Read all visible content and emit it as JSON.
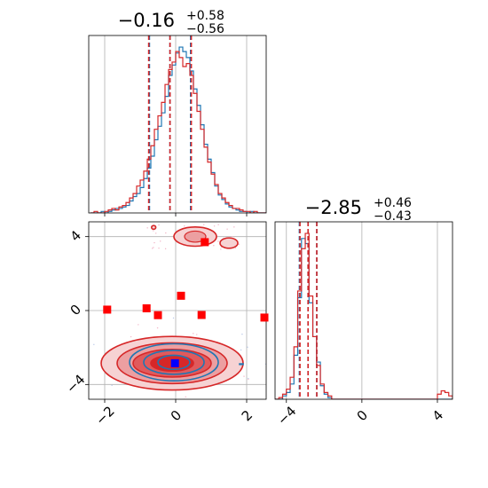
{
  "colors": {
    "blue": "#1f77b4",
    "red": "#d62728",
    "red_fill": "#e99a9b",
    "marker_red": "#ff0000",
    "marker_blue": "#0000ff",
    "grid": "#b0b0b0"
  },
  "chart_data": {
    "type": "corner",
    "params": 2,
    "grid": true,
    "titles": [
      {
        "value": "−0.16",
        "plus": "+0.58",
        "minus": "−0.56"
      },
      {
        "value": "−2.85",
        "plus": "+0.46",
        "minus": "−0.43"
      }
    ],
    "ticks": {
      "x0": {
        "values": [
          -2,
          0,
          2
        ],
        "labels": [
          "−2",
          "0",
          "2"
        ]
      },
      "y1": {
        "values": [
          -4,
          0,
          4
        ],
        "labels": [
          "−4",
          "0",
          "4"
        ]
      },
      "x1": {
        "values": [
          -4,
          0,
          4
        ],
        "labels": [
          "−4",
          "0",
          "4"
        ]
      }
    },
    "ranges": {
      "x0": [
        -2.45,
        2.55
      ],
      "x1": [
        -4.6,
        4.8
      ],
      "y1": [
        -4.8,
        4.8
      ]
    },
    "hist0": {
      "bin_start": -2.4,
      "bin_width": 0.1,
      "blue": [
        0,
        0,
        0,
        1,
        0,
        1,
        2,
        3,
        3,
        4,
        5,
        8,
        11,
        13,
        17,
        23,
        30,
        38,
        49,
        58,
        67,
        78,
        92,
        99,
        107,
        111,
        108,
        104,
        95,
        83,
        72,
        59,
        46,
        36,
        27,
        18,
        12,
        9,
        6,
        4,
        3,
        2,
        1,
        1,
        0,
        1,
        0,
        0,
        0,
        0
      ],
      "red": [
        0,
        1,
        0,
        0,
        1,
        2,
        3,
        2,
        4,
        5,
        7,
        10,
        13,
        18,
        22,
        28,
        36,
        45,
        56,
        65,
        74,
        86,
        96,
        101,
        108,
        104,
        98,
        100,
        92,
        80,
        68,
        56,
        44,
        34,
        26,
        19,
        13,
        10,
        7,
        5,
        3,
        3,
        2,
        1,
        1,
        0,
        1,
        0,
        0,
        0
      ],
      "blue_quantiles": [
        -0.74,
        -0.16,
        0.42
      ],
      "red_quantiles": [
        -0.76,
        -0.16,
        0.44
      ]
    },
    "hist1": {
      "bin_start": -4.6,
      "bin_width": 0.2,
      "blue": [
        0,
        0,
        2,
        4,
        9,
        26,
        60,
        95,
        92,
        57,
        37,
        22,
        8,
        3,
        1,
        0,
        0,
        0,
        0,
        0,
        0,
        0,
        0,
        0,
        0,
        0,
        0,
        0,
        0,
        0,
        0,
        0,
        0,
        0,
        0,
        0,
        0,
        0,
        0,
        0,
        0,
        0,
        0,
        0,
        0,
        0,
        0
      ],
      "red": [
        0,
        1,
        3,
        6,
        13,
        31,
        64,
        89,
        98,
        61,
        37,
        20,
        9,
        4,
        2,
        0,
        0,
        0,
        0,
        0,
        0,
        0,
        0,
        0,
        0,
        0,
        0,
        0,
        0,
        0,
        0,
        0,
        0,
        0,
        0,
        0,
        0,
        0,
        0,
        0,
        0,
        0,
        0,
        3,
        5,
        4,
        2
      ],
      "blue_quantiles": [
        -3.31,
        -2.85,
        -2.39
      ],
      "red_quantiles": [
        -3.28,
        -2.85,
        -2.39
      ]
    },
    "scatter_2d": {
      "red_markers": [
        [
          -1.93,
          0.05
        ],
        [
          -0.82,
          0.12
        ],
        [
          -0.5,
          -0.25
        ],
        [
          0.15,
          0.8
        ],
        [
          0.73,
          -0.24
        ],
        [
          2.5,
          -0.38
        ],
        [
          0.82,
          3.7
        ]
      ],
      "blue_marker": [
        -0.02,
        -2.85
      ],
      "red_contours": [
        {
          "cx": -0.1,
          "cy": -2.85,
          "rx": 2.0,
          "ry": 1.45
        },
        {
          "cx": -0.1,
          "cy": -2.85,
          "rx": 1.55,
          "ry": 1.1
        },
        {
          "cx": -0.1,
          "cy": -2.85,
          "rx": 1.1,
          "ry": 0.75
        },
        {
          "cx": -0.1,
          "cy": -2.85,
          "rx": 0.6,
          "ry": 0.42
        }
      ],
      "blue_contours": [
        {
          "cx": -0.05,
          "cy": -2.8,
          "rx": 1.25,
          "ry": 1.0
        },
        {
          "cx": -0.05,
          "cy": -2.8,
          "rx": 0.85,
          "ry": 0.65
        },
        {
          "cx": -0.05,
          "cy": -2.8,
          "rx": 0.45,
          "ry": 0.38
        }
      ],
      "upper_blobs": [
        {
          "cx": 0.55,
          "cy": 4.0,
          "rx": 0.6,
          "ry": 0.52
        },
        {
          "cx": 1.5,
          "cy": 3.65,
          "rx": 0.25,
          "ry": 0.28
        },
        {
          "cx": -0.62,
          "cy": 4.5,
          "rx": 0.06,
          "ry": 0.1
        }
      ],
      "small_blue_dash": [
        1.85,
        -2.9
      ]
    }
  }
}
